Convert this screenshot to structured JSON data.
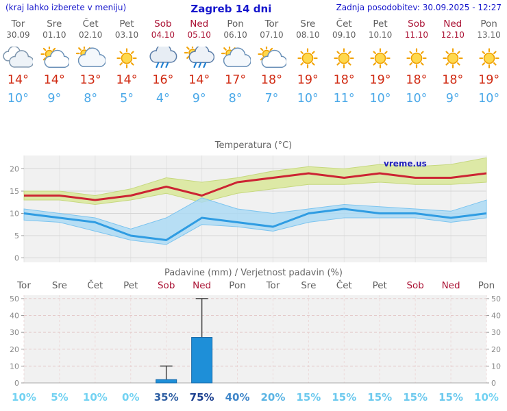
{
  "header": {
    "menu_hint": "(kraj lahko izberete v meniju)",
    "title": "Zagreb 14 dni",
    "last_update": "Zadnja posodobitev: 30.09.2025 - 12:27"
  },
  "colors": {
    "weekday": "#5f5f5f",
    "weekend": "#aa1133",
    "tmax": "#d02a12",
    "tmin": "#4aa8e8",
    "header_blue": "#1515cc",
    "chart_bg": "#f1f1f1"
  },
  "days": [
    {
      "name": "Tor",
      "date": "30.09",
      "weekend": false,
      "icon": "cloudy",
      "tmax": "14°",
      "tmin": "10°"
    },
    {
      "name": "Sre",
      "date": "01.10",
      "weekend": false,
      "icon": "partly-cloudy",
      "tmax": "14°",
      "tmin": "9°"
    },
    {
      "name": "Čet",
      "date": "02.10",
      "weekend": false,
      "icon": "mostly-cloudy",
      "tmax": "13°",
      "tmin": "8°"
    },
    {
      "name": "Pet",
      "date": "03.10",
      "weekend": false,
      "icon": "sunny",
      "tmax": "14°",
      "tmin": "5°"
    },
    {
      "name": "Sob",
      "date": "04.10",
      "weekend": true,
      "icon": "rain",
      "tmax": "16°",
      "tmin": "4°"
    },
    {
      "name": "Ned",
      "date": "05.10",
      "weekend": true,
      "icon": "rain-sun",
      "tmax": "14°",
      "tmin": "9°"
    },
    {
      "name": "Pon",
      "date": "06.10",
      "weekend": false,
      "icon": "mostly-cloudy",
      "tmax": "17°",
      "tmin": "8°"
    },
    {
      "name": "Tor",
      "date": "07.10",
      "weekend": false,
      "icon": "partly-cloudy",
      "tmax": "18°",
      "tmin": "7°"
    },
    {
      "name": "Sre",
      "date": "08.10",
      "weekend": false,
      "icon": "sunny",
      "tmax": "19°",
      "tmin": "10°"
    },
    {
      "name": "Čet",
      "date": "09.10",
      "weekend": false,
      "icon": "sunny",
      "tmax": "18°",
      "tmin": "11°"
    },
    {
      "name": "Pet",
      "date": "10.10",
      "weekend": false,
      "icon": "sunny",
      "tmax": "19°",
      "tmin": "10°"
    },
    {
      "name": "Sob",
      "date": "11.10",
      "weekend": true,
      "icon": "sunny",
      "tmax": "18°",
      "tmin": "10°"
    },
    {
      "name": "Ned",
      "date": "12.10",
      "weekend": true,
      "icon": "sunny",
      "tmax": "18°",
      "tmin": "9°"
    },
    {
      "name": "Pon",
      "date": "13.10",
      "weekend": false,
      "icon": "sunny",
      "tmax": "19°",
      "tmin": "10°"
    }
  ],
  "chart_data": [
    {
      "type": "line",
      "title": "Temperatura (°C)",
      "x_labels": [
        "Tor",
        "Sre",
        "Čet",
        "Pet",
        "Sob",
        "Ned",
        "Pon",
        "Tor",
        "Sre",
        "Čet",
        "Pet",
        "Sob",
        "Ned",
        "Pon"
      ],
      "ylim": [
        -1,
        23
      ],
      "yticks": [
        0,
        5,
        10,
        15,
        20
      ],
      "series": [
        {
          "name": "tmax",
          "color": "#cc2433",
          "values": [
            14,
            14,
            13,
            14,
            16,
            14,
            17,
            18,
            19,
            18,
            19,
            18,
            18,
            19
          ]
        },
        {
          "name": "tmin",
          "color": "#2f9ce2",
          "values": [
            10,
            9,
            8,
            5,
            4,
            9,
            8,
            7,
            10,
            11,
            10,
            10,
            9,
            10
          ]
        },
        {
          "name": "tmax_range_upper",
          "values": [
            15,
            15,
            14,
            15.5,
            18,
            17,
            18,
            19.5,
            20.5,
            20,
            21,
            20.5,
            21,
            22.5
          ]
        },
        {
          "name": "tmax_range_lower",
          "values": [
            13,
            13,
            12,
            13,
            14.5,
            12.5,
            14.5,
            15.5,
            16.5,
            16.5,
            17,
            16.5,
            16.5,
            17
          ]
        },
        {
          "name": "tmin_range_upper",
          "values": [
            11,
            10,
            9,
            6.5,
            9,
            13.5,
            11,
            10,
            11,
            12,
            11.5,
            11,
            10.5,
            13
          ]
        },
        {
          "name": "tmin_range_lower",
          "values": [
            8.5,
            8,
            6,
            4,
            3,
            7.5,
            7,
            6,
            8,
            9,
            9,
            9,
            8,
            9
          ]
        }
      ],
      "band_colors": {
        "max": "#dde9a6",
        "min": "#a9d9f5"
      },
      "watermark": "vreme.us"
    },
    {
      "type": "bar",
      "title": "Padavine (mm) / Verjetnost padavin (%)",
      "x_labels": [
        "Tor",
        "Sre",
        "Čet",
        "Pet",
        "Sob",
        "Ned",
        "Pon",
        "Tor",
        "Sre",
        "Čet",
        "Pet",
        "Sob",
        "Ned",
        "Pon"
      ],
      "weekend": [
        false,
        false,
        false,
        false,
        true,
        true,
        false,
        false,
        false,
        false,
        false,
        true,
        true,
        false
      ],
      "ylim": [
        0,
        52
      ],
      "yticks": [
        0,
        10,
        20,
        30,
        40,
        50
      ],
      "bars": [
        0,
        0,
        0,
        0,
        2,
        27,
        0,
        0,
        0,
        0,
        0,
        0,
        0,
        0
      ],
      "whiskers": [
        0,
        0,
        0,
        0,
        10,
        50,
        0,
        0,
        0,
        0,
        0,
        0,
        0,
        0
      ],
      "bar_color": "#1e8fd8",
      "probabilities": [
        "10%",
        "5%",
        "10%",
        "0%",
        "35%",
        "75%",
        "40%",
        "20%",
        "15%",
        "15%",
        "15%",
        "15%",
        "15%",
        "10%"
      ],
      "prob_colors": [
        "#72d2f2",
        "#72d2f2",
        "#72d2f2",
        "#72d2f2",
        "#2e5fa3",
        "#1b3f8f",
        "#3f86c9",
        "#5ab4e4",
        "#6cc9ee",
        "#6cc9ee",
        "#6cc9ee",
        "#6cc9ee",
        "#6cc9ee",
        "#72d2f2"
      ]
    }
  ]
}
